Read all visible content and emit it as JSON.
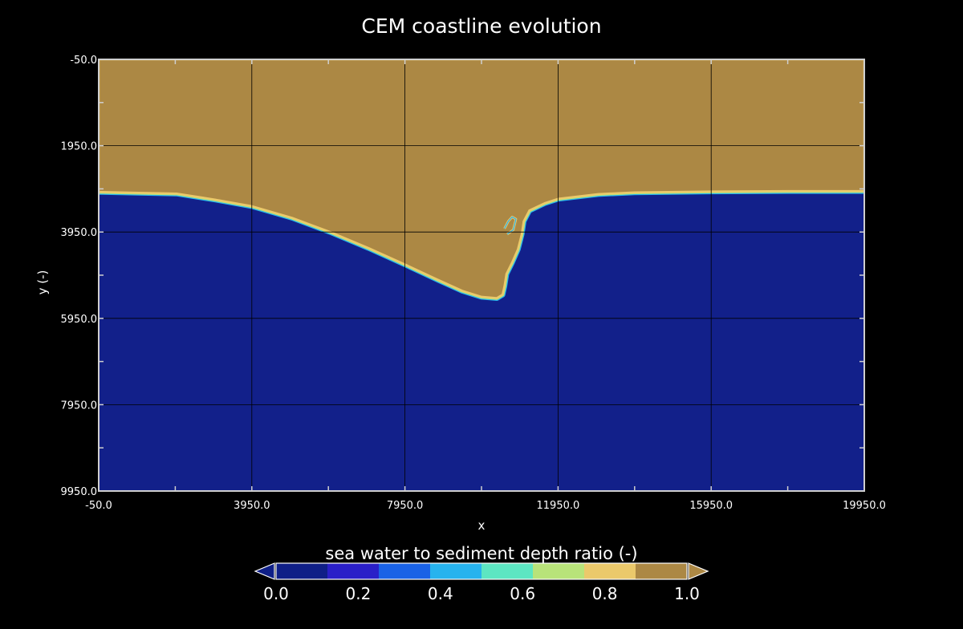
{
  "chart_data": {
    "type": "heatmap",
    "title": "CEM coastline evolution",
    "xlabel": "x",
    "ylabel": "y (-)",
    "xlim": [
      -50.0,
      19950.0
    ],
    "ylim": [
      -50.0,
      9950.0
    ],
    "y_inverted": true,
    "grid": true,
    "x_ticks": [
      "-50.0",
      "3950.0",
      "7950.0",
      "11950.0",
      "15950.0",
      "19950.0"
    ],
    "y_ticks": [
      "-50.0",
      "1950.0",
      "3950.0",
      "5950.0",
      "7950.0",
      "9950.0"
    ],
    "coastline": [
      [
        -50,
        3020
      ],
      [
        1000,
        3040
      ],
      [
        2000,
        3060
      ],
      [
        3000,
        3200
      ],
      [
        3950,
        3350
      ],
      [
        5000,
        3620
      ],
      [
        6000,
        3950
      ],
      [
        7000,
        4320
      ],
      [
        7950,
        4700
      ],
      [
        8800,
        5050
      ],
      [
        9450,
        5310
      ],
      [
        9950,
        5450
      ],
      [
        10350,
        5480
      ],
      [
        10500,
        5400
      ],
      [
        10550,
        5200
      ],
      [
        10600,
        4920
      ],
      [
        10750,
        4650
      ],
      [
        10900,
        4350
      ],
      [
        11000,
        4000
      ],
      [
        11050,
        3700
      ],
      [
        11200,
        3450
      ],
      [
        11600,
        3280
      ],
      [
        11950,
        3180
      ],
      [
        13000,
        3070
      ],
      [
        13950,
        3030
      ],
      [
        15950,
        3010
      ],
      [
        17950,
        3000
      ],
      [
        19950,
        3000
      ]
    ],
    "spit": [
      [
        10550,
        3870
      ],
      [
        10650,
        3700
      ],
      [
        10750,
        3600
      ],
      [
        10850,
        3650
      ],
      [
        10780,
        3900
      ],
      [
        10620,
        4000
      ]
    ],
    "colorbar": {
      "label": "sea water to sediment  depth ratio (-)",
      "ticks": [
        "0.0",
        "0.2",
        "0.4",
        "0.6",
        "0.8",
        "1.0"
      ],
      "range": [
        0.0,
        1.0
      ],
      "extend": "both",
      "colors": [
        "#0f1f87",
        "#2a1fc8",
        "#1a62e6",
        "#27b3ee",
        "#5de6c2",
        "#b8e37a",
        "#ebc96b",
        "#ac8844"
      ]
    },
    "sediment_color": "#ac8844",
    "water_color": "#12208a"
  }
}
